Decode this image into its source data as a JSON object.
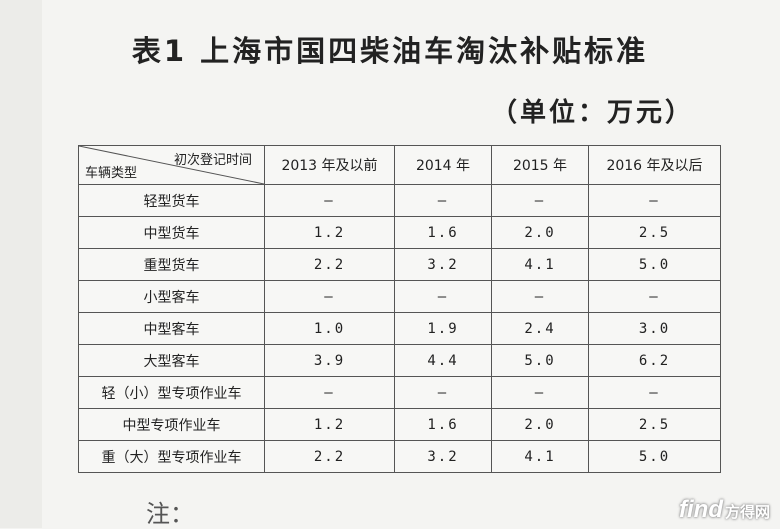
{
  "title": "表1 上海市国四柴油车淘汰补贴标准",
  "unit": "（单位：万元）",
  "table": {
    "corner_top": "初次登记时间",
    "corner_bottom": "车辆类型",
    "columns": [
      "2013 年及以前",
      "2014 年",
      "2015 年",
      "2016 年及以后"
    ],
    "rows": [
      {
        "type": "轻型货车",
        "values": [
          "–",
          "–",
          "–",
          "–"
        ]
      },
      {
        "type": "中型货车",
        "values": [
          "1.2",
          "1.6",
          "2.0",
          "2.5"
        ]
      },
      {
        "type": "重型货车",
        "values": [
          "2.2",
          "3.2",
          "4.1",
          "5.0"
        ]
      },
      {
        "type": "小型客车",
        "values": [
          "–",
          "–",
          "–",
          "–"
        ]
      },
      {
        "type": "中型客车",
        "values": [
          "1.0",
          "1.9",
          "2.4",
          "3.0"
        ]
      },
      {
        "type": "大型客车",
        "values": [
          "3.9",
          "4.4",
          "5.0",
          "6.2"
        ]
      },
      {
        "type": "轻（小）型专项作业车",
        "values": [
          "–",
          "–",
          "–",
          "–"
        ]
      },
      {
        "type": "中型专项作业车",
        "values": [
          "1.2",
          "1.6",
          "2.0",
          "2.5"
        ]
      },
      {
        "type": "重（大）型专项作业车",
        "values": [
          "2.2",
          "3.2",
          "4.1",
          "5.0"
        ]
      }
    ]
  },
  "note": "注：",
  "watermark": {
    "main": "find",
    "sub": "方得网"
  }
}
